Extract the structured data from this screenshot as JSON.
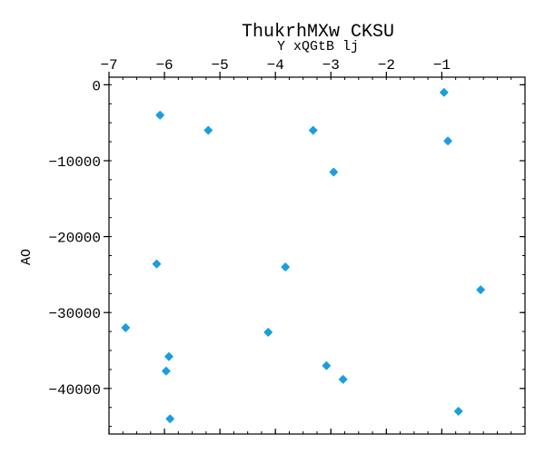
{
  "chart_data": {
    "type": "scatter",
    "title": "ThukrhMXw CKSU",
    "xlabel": "Y xQGtB lj",
    "ylabel": "AO",
    "xlim": [
      -7,
      0.5
    ],
    "ylim": [
      -46000,
      1000
    ],
    "xticks": [
      -7,
      -6,
      -5,
      -4,
      -3,
      -2,
      -1
    ],
    "yticks": [
      0,
      -10000,
      -20000,
      -30000,
      -40000
    ],
    "xtick_labels": [
      "−7",
      "−6",
      "−5",
      "−4",
      "−3",
      "−2",
      "−1"
    ],
    "ytick_labels": [
      "0",
      "−10000",
      "−20000",
      "−30000",
      "−40000"
    ],
    "x_axis_position": "top",
    "grid": false,
    "marker_color": "#1a9ee0",
    "points": [
      {
        "x": -0.96,
        "y": -1000
      },
      {
        "x": -0.89,
        "y": -7400
      },
      {
        "x": -6.08,
        "y": -4000
      },
      {
        "x": -5.21,
        "y": -6000
      },
      {
        "x": -3.32,
        "y": -6000
      },
      {
        "x": -2.95,
        "y": -11500
      },
      {
        "x": -6.14,
        "y": -23600
      },
      {
        "x": -3.82,
        "y": -24000
      },
      {
        "x": -0.3,
        "y": -27000
      },
      {
        "x": -6.7,
        "y": -32000
      },
      {
        "x": -4.13,
        "y": -32600
      },
      {
        "x": -5.92,
        "y": -35800
      },
      {
        "x": -5.97,
        "y": -37700
      },
      {
        "x": -3.08,
        "y": -37000
      },
      {
        "x": -2.78,
        "y": -38800
      },
      {
        "x": -5.9,
        "y": -44000
      },
      {
        "x": -0.7,
        "y": -43000
      }
    ]
  }
}
